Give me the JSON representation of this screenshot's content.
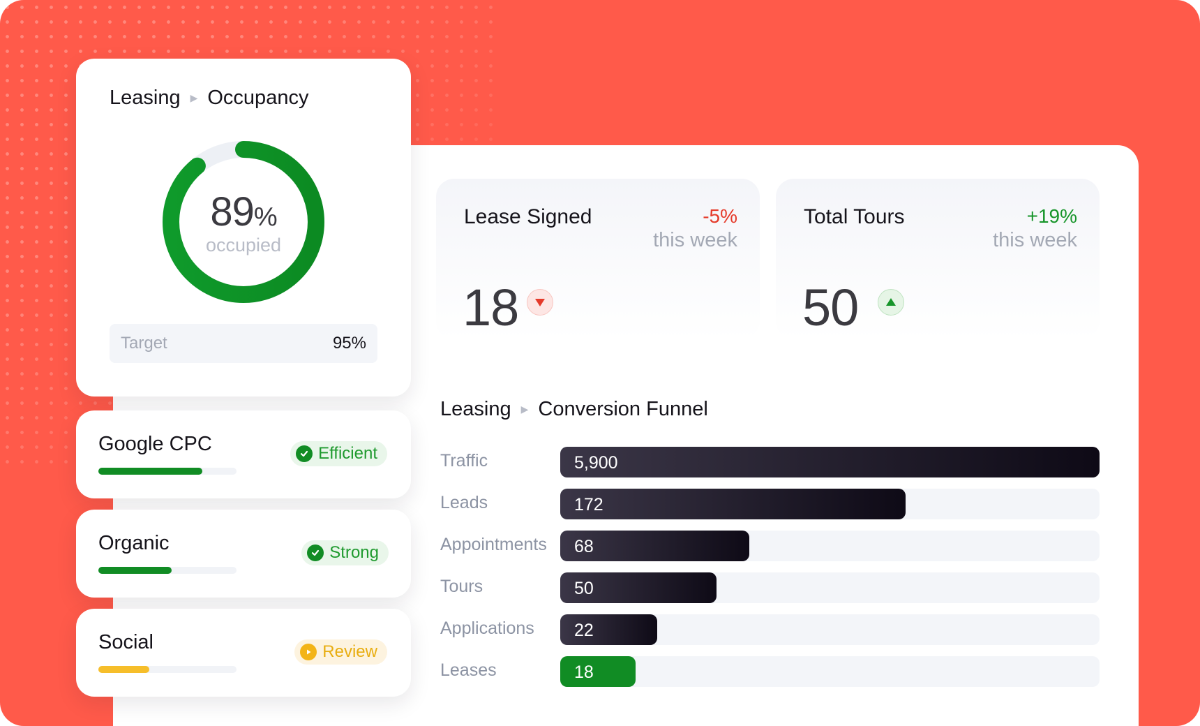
{
  "occupancy": {
    "crumb_parent": "Leasing",
    "crumb_current": "Occupancy",
    "value": "89",
    "unit": "%",
    "fraction": 0.89,
    "caption": "occupied",
    "target_label": "Target",
    "target_value": "95%"
  },
  "channels": [
    {
      "name": "Google CPC",
      "progress": 0.75,
      "bar_color": "#118c24",
      "status": "Efficient",
      "status_kind": "ok",
      "icon": "check-circle-icon"
    },
    {
      "name": "Organic",
      "progress": 0.53,
      "bar_color": "#118c24",
      "status": "Strong",
      "status_kind": "ok",
      "icon": "check-circle-icon"
    },
    {
      "name": "Social",
      "progress": 0.37,
      "bar_color": "#f6be2a",
      "status": "Review",
      "status_kind": "warn",
      "icon": "play-circle-icon"
    }
  ],
  "kpis": [
    {
      "title": "Lease Signed",
      "change": "-5%",
      "period": "this week",
      "value": "18",
      "trend": "down",
      "change_color": "#e53a2a",
      "icon": "triangle-down-icon"
    },
    {
      "title": "Total Tours",
      "change": "+19%",
      "period": "this week",
      "value": "50",
      "trend": "up",
      "change_color": "#17952a",
      "icon": "triangle-up-icon"
    }
  ],
  "funnel": {
    "crumb_parent": "Leasing",
    "crumb_current": "Conversion Funnel",
    "rows": [
      {
        "label": "Traffic",
        "display": "5,900",
        "fill": 1.0,
        "color": "dark"
      },
      {
        "label": "Leads",
        "display": "172",
        "fill": 0.64,
        "color": "dark"
      },
      {
        "label": "Appointments",
        "display": "68",
        "fill": 0.35,
        "color": "dark"
      },
      {
        "label": "Tours",
        "display": "50",
        "fill": 0.29,
        "color": "dark"
      },
      {
        "label": "Applications",
        "display": "22",
        "fill": 0.18,
        "color": "dark"
      },
      {
        "label": "Leases",
        "display": "18",
        "fill": 0.14,
        "color": "green"
      }
    ]
  },
  "colors": {
    "brand_background": "#ff5a4a",
    "positive": "#118c24",
    "negative": "#e53a2a",
    "warning": "#f3b417"
  }
}
